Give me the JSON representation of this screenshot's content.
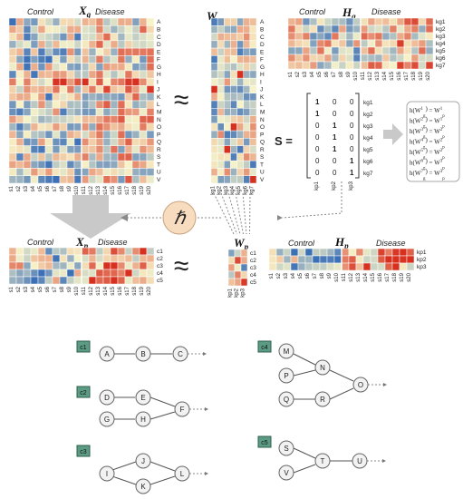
{
  "colors": {
    "low": "#3b6fb6",
    "mid": "#f7f3c8",
    "high": "#d7301f",
    "arrow_gray": "#c9c9c9",
    "hbar_circle": "#f8dcc0",
    "cluster_green": "#5c9c84"
  },
  "heatmaps": {
    "Xg": {
      "title": "Xg",
      "groups": [
        "Control",
        "Disease"
      ],
      "rows": [
        "A",
        "B",
        "C",
        "D",
        "E",
        "F",
        "G",
        "H",
        "I",
        "J",
        "K",
        "L",
        "M",
        "N",
        "O",
        "P",
        "Q",
        "R",
        "S",
        "T",
        "U",
        "V"
      ],
      "cols": [
        "s1",
        "s2",
        "s3",
        "s4",
        "s5",
        "s6",
        "s7",
        "s8",
        "s9",
        "s10",
        "s11",
        "s12",
        "s13",
        "s14",
        "s15",
        "s16",
        "s17",
        "s18",
        "s19",
        "s20"
      ]
    },
    "Wg": {
      "title": "Wg",
      "rows": [
        "A",
        "B",
        "C",
        "D",
        "E",
        "F",
        "G",
        "H",
        "I",
        "J",
        "K",
        "L",
        "M",
        "N",
        "O",
        "P",
        "Q",
        "R",
        "S",
        "T",
        "U",
        "V"
      ],
      "cols": [
        "kg1",
        "kg2",
        "kg3",
        "kg4",
        "kg5",
        "kg6",
        "kg7"
      ]
    },
    "Hg": {
      "title": "Hg",
      "groups": [
        "Control",
        "Disease"
      ],
      "rows": [
        "kg1",
        "kg2",
        "kg3",
        "kg4",
        "kg5",
        "kg6",
        "kg7"
      ],
      "cols": [
        "s1",
        "s2",
        "s3",
        "s4",
        "s5",
        "s6",
        "s7",
        "s8",
        "s9",
        "s10",
        "s11",
        "s12",
        "s13",
        "s14",
        "s15",
        "s16",
        "s17",
        "s18",
        "s19",
        "s20"
      ]
    },
    "Xp": {
      "title": "Xp",
      "groups": [
        "Control",
        "Disease"
      ],
      "rows": [
        "c1",
        "c2",
        "c3",
        "c4",
        "c5"
      ],
      "cols": [
        "s1",
        "s2",
        "s3",
        "s4",
        "s5",
        "s6",
        "s7",
        "s8",
        "s9",
        "s10",
        "s11",
        "s12",
        "s13",
        "s14",
        "s15",
        "s16",
        "s17",
        "s18",
        "s19",
        "s20"
      ]
    },
    "Wp": {
      "title": "Wp",
      "rows": [
        "c1",
        "c2",
        "c3",
        "c4",
        "c5"
      ],
      "cols": [
        "kp1",
        "kp2",
        "kp3"
      ]
    },
    "Hp": {
      "title": "Hp",
      "groups": [
        "Control",
        "Disease"
      ],
      "rows": [
        "kp1",
        "kp2",
        "kp3"
      ],
      "cols": [
        "s1",
        "s2",
        "s3",
        "s4",
        "s5",
        "s6",
        "s7",
        "s8",
        "s9",
        "s10",
        "s11",
        "s12",
        "s13",
        "s14",
        "s15",
        "s16",
        "s17",
        "s18",
        "s19",
        "s20"
      ]
    }
  },
  "approx_symbol": "≈",
  "s_matrix": {
    "label": "S =",
    "rows": [
      "kg1",
      "kg2",
      "kg3",
      "kg4",
      "kg5",
      "kg6",
      "kg7"
    ],
    "cols": [
      "kp1",
      "kp2",
      "kp3"
    ],
    "values": [
      [
        1,
        0,
        0
      ],
      [
        1,
        0,
        0
      ],
      [
        0,
        1,
        0
      ],
      [
        0,
        1,
        0
      ],
      [
        0,
        1,
        0
      ],
      [
        0,
        0,
        1
      ],
      [
        0,
        0,
        1
      ]
    ]
  },
  "h_symbol": "ℏ",
  "h_mappings": [
    {
      "lhs": "h(W",
      "lsup": "1",
      "lsub": "g",
      "rhs": "W",
      "rsup": "1",
      "rsub": "p"
    },
    {
      "lhs": "h(W",
      "lsup": "2",
      "lsub": "g",
      "rhs": "W",
      "rsup": "1",
      "rsub": "p"
    },
    {
      "lhs": "h(W",
      "lsup": "3",
      "lsub": "g",
      "rhs": "W",
      "rsup": "2",
      "rsub": "p"
    },
    {
      "lhs": "h(W",
      "lsup": "4",
      "lsub": "g",
      "rhs": "W",
      "rsup": "2",
      "rsub": "p"
    },
    {
      "lhs": "h(W",
      "lsup": "5",
      "lsub": "g",
      "rhs": "W",
      "rsup": "2",
      "rsub": "p"
    },
    {
      "lhs": "h(W",
      "lsup": "6",
      "lsub": "g",
      "rhs": "W",
      "rsup": "3",
      "rsub": "p"
    },
    {
      "lhs": "h(W",
      "lsup": "7",
      "lsub": "g",
      "rhs": "W",
      "rsup": "3",
      "rsub": "p"
    }
  ],
  "pathways": [
    {
      "tag": "c1",
      "nodes": [
        "A",
        "B",
        "C"
      ]
    },
    {
      "tag": "c2",
      "nodes": [
        "D",
        "E",
        "G",
        "H",
        "F"
      ]
    },
    {
      "tag": "c3",
      "nodes": [
        "I",
        "J",
        "K",
        "L"
      ]
    },
    {
      "tag": "c4",
      "nodes": [
        "M",
        "P",
        "N",
        "Q",
        "R",
        "O"
      ]
    },
    {
      "tag": "c5",
      "nodes": [
        "S",
        "V",
        "T",
        "U"
      ]
    }
  ]
}
